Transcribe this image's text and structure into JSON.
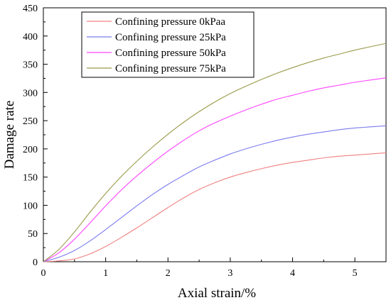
{
  "chart_data": {
    "type": "line",
    "title": "",
    "xlabel": "Axial strain/%",
    "ylabel": "Damage rate",
    "xlim": [
      0,
      5.5
    ],
    "ylim": [
      0,
      450
    ],
    "xticks": [
      0,
      1,
      2,
      3,
      4,
      5
    ],
    "yticks": [
      0,
      50,
      100,
      150,
      200,
      250,
      300,
      350,
      400,
      450
    ],
    "grid": false,
    "legend_position": "top-left",
    "x": [
      0,
      0.25,
      0.5,
      0.75,
      1,
      1.25,
      1.5,
      1.75,
      2,
      2.25,
      2.5,
      2.75,
      3,
      3.25,
      3.5,
      3.75,
      4,
      4.25,
      4.5,
      4.75,
      5,
      5.25,
      5.5
    ],
    "series": [
      {
        "name": "Confining pressure 0kPaa",
        "color": "#f08080",
        "values": [
          0,
          1.5,
          5,
          14,
          27,
          43,
          60,
          78,
          96,
          113,
          128,
          140,
          150,
          158,
          165,
          171,
          176,
          180,
          184,
          187,
          189,
          191,
          193
        ]
      },
      {
        "name": "Confining pressure 25kPa",
        "color": "#7b7bf0",
        "values": [
          0,
          8,
          20,
          37,
          57,
          78,
          99,
          119,
          137,
          153,
          168,
          180,
          191,
          200,
          208,
          215,
          221,
          226,
          230,
          234,
          237,
          239,
          241
        ]
      },
      {
        "name": "Confining pressure 50kPa",
        "color": "#ff44ff",
        "values": [
          0,
          16,
          40,
          69,
          99,
          127,
          152,
          175,
          196,
          215,
          232,
          246,
          258,
          269,
          279,
          288,
          295,
          302,
          308,
          313,
          318,
          322,
          326
        ]
      },
      {
        "name": "Confining pressure 75kPa",
        "color": "#9a9a4a",
        "values": [
          0,
          22,
          53,
          88,
          121,
          151,
          178,
          203,
          226,
          247,
          266,
          283,
          298,
          311,
          323,
          334,
          344,
          353,
          361,
          368,
          375,
          381,
          387
        ]
      }
    ]
  }
}
